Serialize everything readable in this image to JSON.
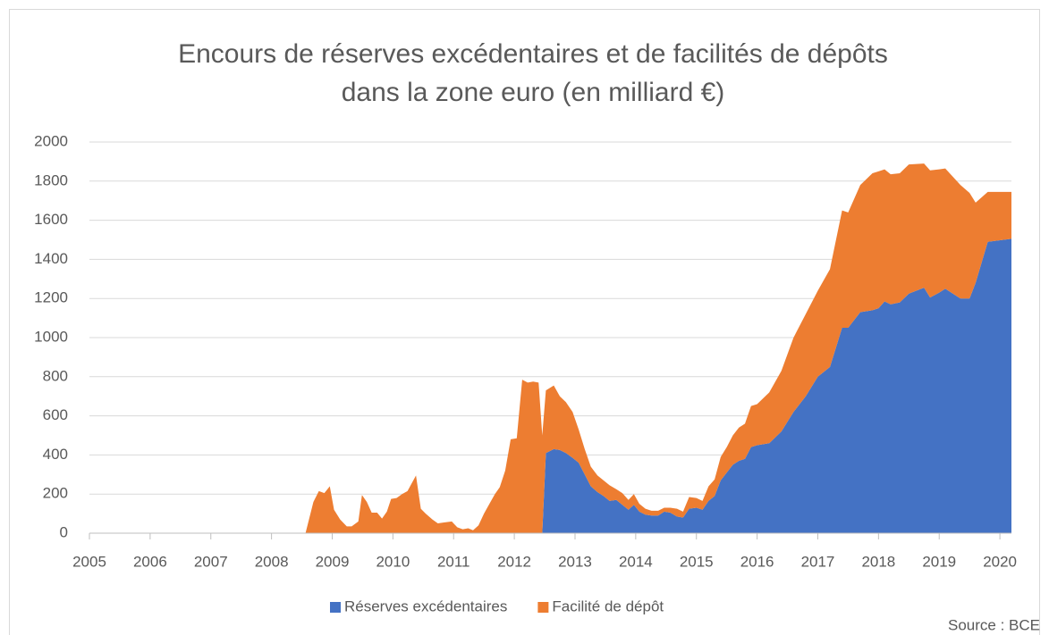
{
  "chart_data": {
    "type": "stacked-area",
    "title": [
      "Encours de réserves excédentaires et de facilités de dépôts",
      "dans la zone euro (en milliard €)"
    ],
    "source": "Source : BCE",
    "x": [
      2005,
      2008.56,
      2008.69,
      2008.78,
      2008.87,
      2008.96,
      2009.03,
      2009.13,
      2009.24,
      2009.32,
      2009.43,
      2009.49,
      2009.57,
      2009.65,
      2009.74,
      2009.82,
      2009.9,
      2009.97,
      2010.06,
      2010.15,
      2010.24,
      2010.38,
      2010.46,
      2010.54,
      2010.65,
      2010.74,
      2010.84,
      2010.97,
      2011.06,
      2011.15,
      2011.24,
      2011.32,
      2011.41,
      2011.5,
      2011.59,
      2011.68,
      2011.76,
      2011.85,
      2011.94,
      2012.04,
      2012.13,
      2012.22,
      2012.31,
      2012.4,
      2012.46,
      2012.52,
      2012.65,
      2012.75,
      2012.85,
      2012.96,
      2013.06,
      2013.16,
      2013.26,
      2013.37,
      2013.47,
      2013.57,
      2013.68,
      2013.78,
      2013.88,
      2013.97,
      2014.06,
      2014.16,
      2014.26,
      2014.37,
      2014.47,
      2014.57,
      2014.68,
      2014.78,
      2014.88,
      2015.0,
      2015.1,
      2015.2,
      2015.3,
      2015.4,
      2015.5,
      2015.6,
      2015.7,
      2015.8,
      2015.9,
      2016.0,
      2016.2,
      2016.4,
      2016.6,
      2016.8,
      2017.0,
      2017.2,
      2017.4,
      2017.5,
      2017.7,
      2017.9,
      2018.0,
      2018.1,
      2018.2,
      2018.35,
      2018.5,
      2018.75,
      2018.85,
      2019.0,
      2019.1,
      2019.35,
      2019.5,
      2019.6,
      2019.8,
      2020.19
    ],
    "series": [
      {
        "name": "Réserves excédentaires",
        "color": "#4472c4",
        "values": [
          0,
          0,
          0,
          0,
          0,
          0,
          0,
          0,
          0,
          0,
          0,
          0,
          0,
          0,
          0,
          0,
          0,
          0,
          0,
          0,
          0,
          0,
          0,
          0,
          0,
          0,
          0,
          0,
          0,
          0,
          0,
          0,
          0,
          0,
          0,
          0,
          0,
          0,
          0,
          0,
          0,
          0,
          0,
          0,
          0,
          410,
          430,
          425,
          410,
          385,
          360,
          300,
          240,
          210,
          190,
          165,
          170,
          145,
          120,
          145,
          110,
          95,
          90,
          90,
          110,
          105,
          85,
          80,
          125,
          130,
          120,
          165,
          190,
          270,
          310,
          350,
          370,
          380,
          440,
          450,
          460,
          520,
          620,
          700,
          800,
          850,
          1050,
          1050,
          1130,
          1140,
          1150,
          1185,
          1170,
          1180,
          1225,
          1255,
          1205,
          1230,
          1250,
          1200,
          1200,
          1280,
          1490,
          1505
        ]
      },
      {
        "name": "Facilité de dépôt",
        "color": "#ed7d31",
        "values": [
          0,
          0,
          160,
          215,
          205,
          240,
          120,
          70,
          35,
          35,
          60,
          195,
          160,
          105,
          105,
          75,
          110,
          175,
          180,
          200,
          215,
          295,
          125,
          100,
          70,
          50,
          55,
          60,
          30,
          20,
          25,
          15,
          40,
          100,
          150,
          200,
          235,
          320,
          480,
          485,
          785,
          770,
          775,
          770,
          500,
          320,
          325,
          275,
          260,
          235,
          170,
          130,
          100,
          85,
          80,
          80,
          55,
          60,
          50,
          55,
          40,
          30,
          25,
          25,
          20,
          25,
          40,
          30,
          60,
          50,
          45,
          75,
          85,
          120,
          130,
          150,
          170,
          180,
          210,
          210,
          260,
          310,
          380,
          420,
          440,
          500,
          600,
          590,
          650,
          700,
          700,
          675,
          665,
          660,
          660,
          635,
          650,
          630,
          615,
          580,
          540,
          410,
          255,
          240
        ]
      }
    ],
    "xlim": [
      2005,
      2020.19
    ],
    "xticks": [
      2005,
      2006,
      2007,
      2008,
      2009,
      2010,
      2011,
      2012,
      2013,
      2014,
      2015,
      2016,
      2017,
      2018,
      2019,
      2020
    ],
    "ylim": [
      0,
      2000
    ],
    "yticks": [
      0,
      200,
      400,
      600,
      800,
      1000,
      1200,
      1400,
      1600,
      1800,
      2000
    ],
    "grid": true,
    "legend": "bottom"
  }
}
